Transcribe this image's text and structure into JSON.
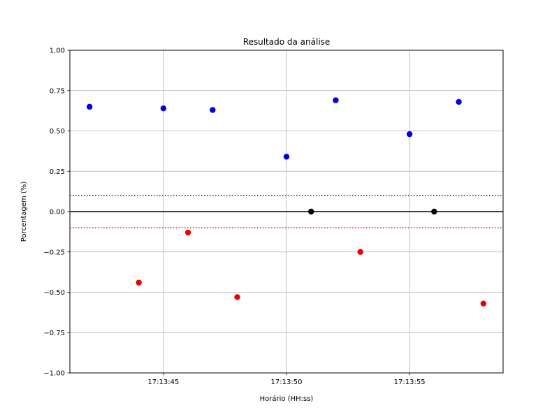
{
  "chart_data": {
    "type": "scatter",
    "title": "Resultado da análise",
    "xlabel": "Horário (HH:ss)",
    "ylabel": "Porcentagem (%)",
    "x_ticks": [
      "17:13:45",
      "17:13:50",
      "17:13:55"
    ],
    "y_ticks": [
      "1.00",
      "0.75",
      "0.50",
      "0.25",
      "0.00",
      "−0.25",
      "−0.50",
      "−0.75",
      "−1.00"
    ],
    "ylim": [
      -1.0,
      1.0
    ],
    "xlim": [
      "17:13:41.2",
      "17:13:58.8"
    ],
    "grid": true,
    "reference_lines": [
      {
        "y": 0.1,
        "color": "#0000ff",
        "style": "dotted"
      },
      {
        "y": 0.0,
        "color": "#000000",
        "style": "solid"
      },
      {
        "y": -0.1,
        "color": "#ff0000",
        "style": "dotted"
      }
    ],
    "points": [
      {
        "x": "17:13:42",
        "y": 0.65,
        "color": "#0000dd"
      },
      {
        "x": "17:13:44",
        "y": -0.44,
        "color": "#ee0000"
      },
      {
        "x": "17:13:45",
        "y": 0.64,
        "color": "#0000dd"
      },
      {
        "x": "17:13:46",
        "y": -0.13,
        "color": "#ee0000"
      },
      {
        "x": "17:13:47",
        "y": 0.63,
        "color": "#0000dd"
      },
      {
        "x": "17:13:48",
        "y": -0.53,
        "color": "#ee0000"
      },
      {
        "x": "17:13:50",
        "y": 0.34,
        "color": "#0000dd"
      },
      {
        "x": "17:13:51",
        "y": 0.0,
        "color": "#000000"
      },
      {
        "x": "17:13:52",
        "y": 0.69,
        "color": "#0000dd"
      },
      {
        "x": "17:13:53",
        "y": -0.25,
        "color": "#ee0000"
      },
      {
        "x": "17:13:55",
        "y": 0.48,
        "color": "#0000dd"
      },
      {
        "x": "17:13:56",
        "y": 0.0,
        "color": "#000000"
      },
      {
        "x": "17:13:57",
        "y": 0.68,
        "color": "#0000dd"
      },
      {
        "x": "17:13:58",
        "y": -0.57,
        "color": "#ee0000"
      }
    ]
  }
}
